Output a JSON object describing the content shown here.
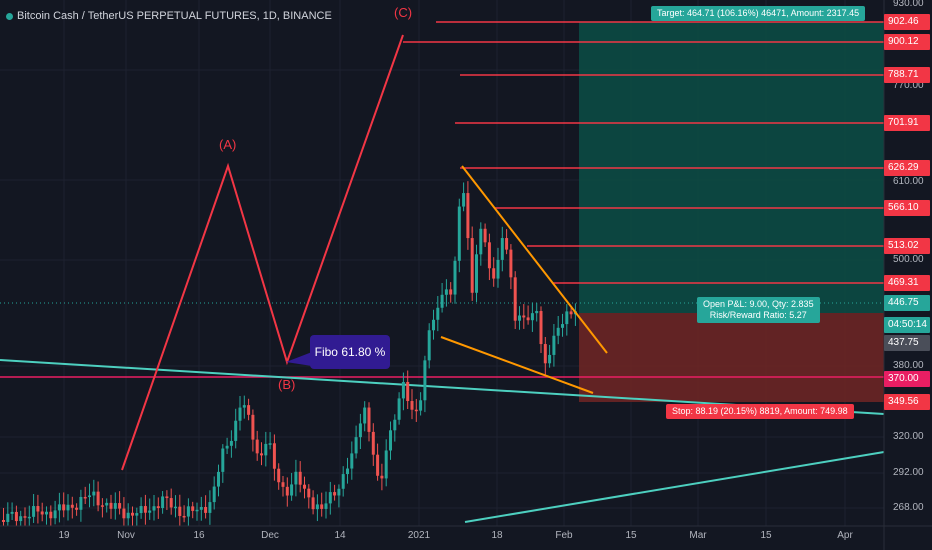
{
  "header": {
    "title": "Bitcoin Cash / TetherUS PERPETUAL FUTURES, 1D, BINANCE"
  },
  "colors": {
    "background": "#131722",
    "up": "#26a69a",
    "down": "#ef5350",
    "target_zone": "#0c4a44",
    "stop_zone": "#6b2525",
    "fib": "#f23645",
    "wave": "#f23645",
    "wedge": "#ff9800",
    "trend": "#4dd0c0"
  },
  "wave_labels": {
    "a": "(A)",
    "b": "(B)",
    "c": "(C)"
  },
  "fibo_label": "Fibo 61.80 %",
  "target_box": "Target: 464.71 (106.16%) 46471, Amount: 2317.45",
  "pnl_box": {
    "line1": "Open P&L: 9.00, Qty: 2.835",
    "line2": "Risk/Reward Ratio: 5.27"
  },
  "stop_box": "Stop: 88.19 (20.15%) 8819, Amount: 749.98",
  "y_axis_ticks": [
    "930.00",
    "770.00",
    "610.00",
    "500.00",
    "380.00",
    "320.00",
    "292.00",
    "268.00"
  ],
  "x_axis_ticks": [
    "19",
    "Nov",
    "16",
    "Dec",
    "14",
    "2021",
    "18",
    "Feb",
    "15",
    "Mar",
    "15",
    "Apr"
  ],
  "price_tags": [
    {
      "value": "902.46",
      "color": "#f23645"
    },
    {
      "value": "900.12",
      "color": "#f23645"
    },
    {
      "value": "788.71",
      "color": "#f23645"
    },
    {
      "value": "701.91",
      "color": "#f23645"
    },
    {
      "value": "626.29",
      "color": "#f23645"
    },
    {
      "value": "566.10",
      "color": "#f23645"
    },
    {
      "value": "513.02",
      "color": "#f23645"
    },
    {
      "value": "469.31",
      "color": "#f23645"
    },
    {
      "value": "446.75",
      "color": "#26a69a"
    },
    {
      "value": "04:50:14",
      "color": "#26a69a"
    },
    {
      "value": "437.75",
      "color": "#4a4e59"
    },
    {
      "value": "370.00",
      "color": "#e91e63"
    },
    {
      "value": "349.56",
      "color": "#f23645"
    }
  ]
}
